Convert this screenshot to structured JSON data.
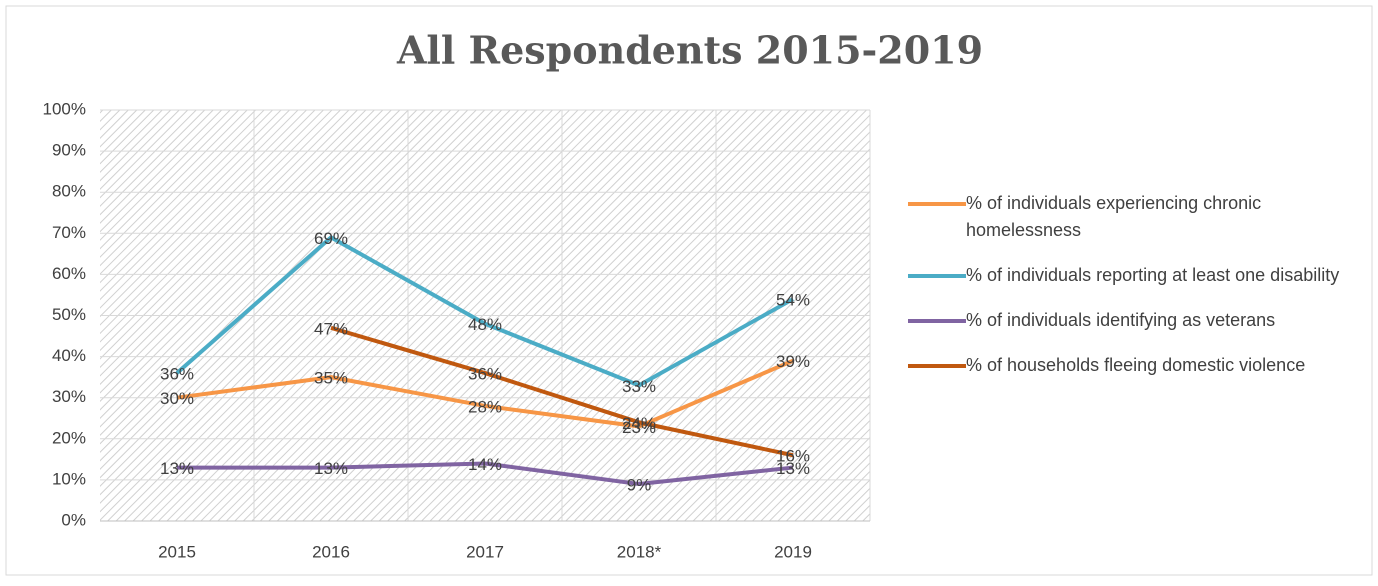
{
  "chart_data": {
    "type": "line",
    "title": "All Respondents 2015-2019",
    "categories": [
      "2015",
      "2016",
      "2017",
      "2018*",
      "2019"
    ],
    "series": [
      {
        "name": "% of individuals experiencing chronic homelessness",
        "color": "#f79646",
        "values": [
          30,
          35,
          28,
          23,
          39
        ],
        "value_labels": [
          "30%",
          "35%",
          "28%",
          "23%",
          "39%"
        ]
      },
      {
        "name": "% of individuals reporting at least one disability",
        "color": "#4bacc6",
        "values": [
          36,
          69,
          48,
          33,
          54
        ],
        "value_labels": [
          "36%",
          "69%",
          "48%",
          "33%",
          "54%"
        ]
      },
      {
        "name": "% of individuals identifying as veterans",
        "color": "#8064a2",
        "values": [
          13,
          13,
          14,
          9,
          13
        ],
        "value_labels": [
          "13%",
          "13%",
          "14%",
          "9%",
          "13%"
        ]
      },
      {
        "name": "% of households fleeing domestic violence",
        "color": "#c0580f",
        "values": [
          null,
          47,
          36,
          24,
          16
        ],
        "value_labels": [
          null,
          "47%",
          "36%",
          "24%",
          "16%"
        ]
      }
    ],
    "ylim": [
      0,
      100
    ],
    "yticks": [
      {
        "value": 0,
        "label": "0%"
      },
      {
        "value": 10,
        "label": "10%"
      },
      {
        "value": 20,
        "label": "20%"
      },
      {
        "value": 30,
        "label": "30%"
      },
      {
        "value": 40,
        "label": "40%"
      },
      {
        "value": 50,
        "label": "50%"
      },
      {
        "value": 60,
        "label": "60%"
      },
      {
        "value": 70,
        "label": "70%"
      },
      {
        "value": 80,
        "label": "80%"
      },
      {
        "value": 90,
        "label": "90%"
      },
      {
        "value": 100,
        "label": "100%"
      }
    ],
    "grid": true,
    "legend": "right"
  }
}
